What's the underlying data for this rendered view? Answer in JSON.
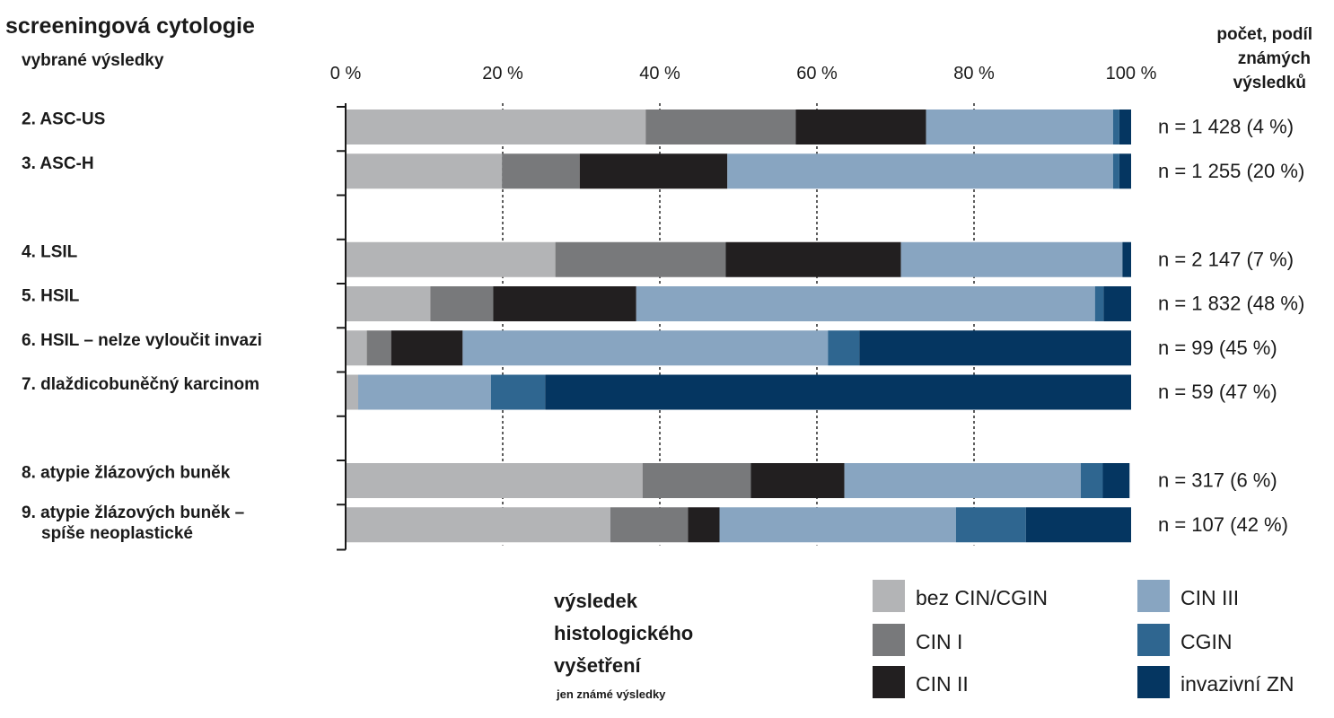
{
  "chart_data": {
    "type": "bar",
    "orientation": "horizontal",
    "stacked": true,
    "percent_stacked": true,
    "title": "screeningová cytologie",
    "subtitle": "vybrané výsledky",
    "right_header": [
      "počet, podíl",
      "známých",
      "výsledků"
    ],
    "x_ticks": [
      "0 %",
      "20 %",
      "40 %",
      "60 %",
      "80 %",
      "100 %"
    ],
    "xlim": [
      0,
      100
    ],
    "grid": "vertical dashed",
    "categories": [
      [
        "2. ASC-US"
      ],
      [
        "3. ASC-H"
      ],
      [],
      [
        "4. LSIL"
      ],
      [
        "5. HSIL"
      ],
      [
        "6. HSIL – nelze vyloučit invazi"
      ],
      [
        "7. dlaždicobuněčný karcinom"
      ],
      [],
      [
        "8. atypie žlázových buněk"
      ],
      [
        "9. atypie žlázových buněk –",
        "spíše neoplastické"
      ]
    ],
    "annotations": [
      "n = 1 428 (4 %)",
      "n = 1 255 (20 %)",
      "",
      "n = 2 147 (7 %)",
      "n = 1 832 (48 %)",
      "n = 99 (45 %)",
      "n = 59 (47 %)",
      "",
      "n = 317 (6 %)",
      "n = 107 (42 %)"
    ],
    "series": [
      {
        "name": "bez CIN/CGIN",
        "color": "#b3b4b6",
        "values": [
          38.2,
          19.9,
          null,
          26.7,
          10.8,
          2.7,
          1.6,
          null,
          37.8,
          33.7
        ]
      },
      {
        "name": "CIN I",
        "color": "#78797b",
        "values": [
          19.1,
          9.9,
          null,
          21.7,
          8.0,
          3.1,
          0.0,
          null,
          13.8,
          9.9
        ]
      },
      {
        "name": "CIN II",
        "color": "#221f20",
        "values": [
          16.6,
          18.8,
          null,
          22.3,
          18.2,
          9.1,
          0.0,
          null,
          11.9,
          4.0
        ]
      },
      {
        "name": "CIN III",
        "color": "#88a5c1",
        "values": [
          23.8,
          49.1,
          null,
          28.2,
          58.4,
          46.5,
          16.9,
          null,
          30.1,
          30.1
        ]
      },
      {
        "name": "CGIN",
        "color": "#2f6690",
        "values": [
          0.8,
          0.8,
          null,
          0.0,
          1.1,
          4.0,
          6.9,
          null,
          2.8,
          8.9
        ]
      },
      {
        "name": "invazivní ZN",
        "color": "#053661",
        "values": [
          1.5,
          1.5,
          null,
          1.1,
          3.5,
          34.6,
          74.6,
          null,
          3.4,
          13.4
        ]
      }
    ],
    "legend_title": [
      "výsledek",
      "histologického",
      "vyšetření"
    ],
    "legend_subtitle": "jen známé výsledky",
    "legend_position": "bottom-right"
  }
}
